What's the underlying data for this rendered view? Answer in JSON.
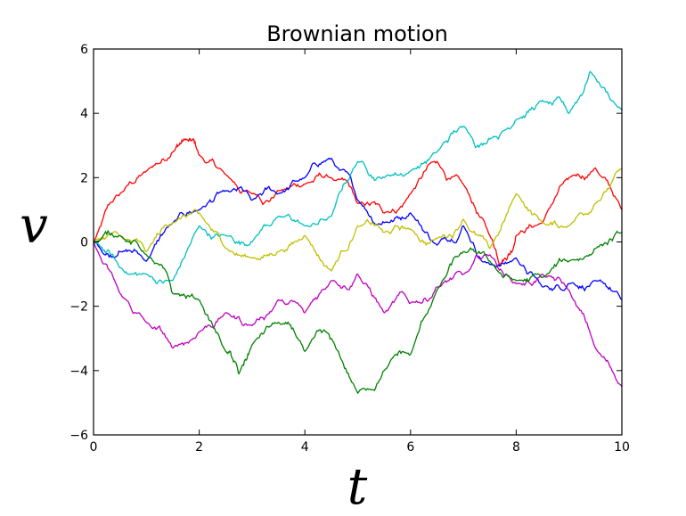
{
  "chart_data": {
    "type": "line",
    "title": "Brownian motion",
    "xlabel": "t",
    "ylabel": "v",
    "xlim": [
      0,
      10
    ],
    "ylim": [
      -6,
      6
    ],
    "xticks": [
      0,
      2,
      4,
      6,
      8,
      10
    ],
    "yticks": [
      -6,
      -4,
      -2,
      0,
      2,
      4,
      6
    ],
    "xtick_labels": [
      "0",
      "2",
      "4",
      "6",
      "8",
      "10"
    ],
    "ytick_labels": [
      "−6",
      "−4",
      "−2",
      "0",
      "2",
      "4",
      "6"
    ],
    "grid": false,
    "series": [
      {
        "color": "#ff0000",
        "x": [
          0,
          0.5,
          1.0,
          1.5,
          1.75,
          2.0,
          2.5,
          3.0,
          3.5,
          4.0,
          4.5,
          5.0,
          5.5,
          6.0,
          6.5,
          7.0,
          7.5,
          7.75,
          8.0,
          8.5,
          9.0,
          9.5,
          10.0
        ],
        "y": [
          0.0,
          1.5,
          2.2,
          2.8,
          3.2,
          2.7,
          2.1,
          1.5,
          1.6,
          1.8,
          2.0,
          1.2,
          0.9,
          1.5,
          2.5,
          1.8,
          0.2,
          -0.6,
          0.2,
          0.6,
          2.0,
          2.3,
          1.0
        ]
      },
      {
        "color": "#0000ff",
        "x": [
          0,
          0.5,
          1.0,
          1.5,
          2.0,
          2.5,
          3.0,
          3.5,
          4.0,
          4.5,
          5.0,
          5.5,
          6.0,
          6.5,
          7.0,
          7.5,
          8.0,
          8.5,
          9.0,
          9.5,
          10.0
        ],
        "y": [
          0.0,
          -0.3,
          -0.6,
          0.6,
          1.0,
          1.6,
          1.3,
          1.5,
          2.0,
          2.6,
          1.3,
          0.6,
          0.9,
          -0.1,
          0.5,
          -0.7,
          -0.5,
          -1.4,
          -1.3,
          -1.2,
          -1.8
        ]
      },
      {
        "color": "#00bfbf",
        "x": [
          0,
          0.5,
          1.0,
          1.5,
          2.0,
          2.5,
          3.0,
          3.5,
          4.0,
          4.5,
          5.0,
          5.5,
          6.0,
          6.5,
          7.0,
          7.5,
          8.0,
          8.5,
          9.0,
          9.4,
          10.0
        ],
        "y": [
          0.0,
          -0.8,
          -1.0,
          -1.2,
          0.5,
          0.2,
          0.0,
          0.8,
          0.5,
          0.8,
          2.5,
          2.0,
          2.2,
          2.8,
          3.6,
          3.2,
          3.8,
          4.4,
          4.0,
          5.3,
          4.1
        ]
      },
      {
        "color": "#bfbf00",
        "x": [
          0,
          0.5,
          1.0,
          1.5,
          2.0,
          2.5,
          3.0,
          3.5,
          4.0,
          4.5,
          5.0,
          5.5,
          6.0,
          6.5,
          7.0,
          7.5,
          8.0,
          8.5,
          9.0,
          9.5,
          10.0
        ],
        "y": [
          0.0,
          0.2,
          -0.3,
          0.6,
          0.9,
          -0.2,
          -0.5,
          -0.3,
          0.2,
          -0.9,
          0.5,
          0.3,
          0.4,
          0.1,
          0.7,
          -0.2,
          1.5,
          0.6,
          0.5,
          1.2,
          2.3
        ]
      },
      {
        "color": "#bf00bf",
        "x": [
          0,
          0.5,
          1.0,
          1.5,
          2.0,
          2.5,
          3.0,
          3.5,
          4.0,
          4.5,
          5.0,
          5.5,
          6.0,
          6.5,
          7.0,
          7.5,
          8.0,
          8.5,
          9.0,
          9.5,
          10.0
        ],
        "y": [
          0.0,
          -1.6,
          -2.5,
          -3.3,
          -2.8,
          -2.2,
          -2.6,
          -1.8,
          -2.2,
          -1.2,
          -1.0,
          -2.2,
          -1.9,
          -1.4,
          -1.0,
          -0.4,
          -1.3,
          -1.0,
          -1.5,
          -3.3,
          -4.5
        ]
      },
      {
        "color": "#008000",
        "x": [
          0,
          0.5,
          1.0,
          1.5,
          2.0,
          2.5,
          2.75,
          3.0,
          3.5,
          4.0,
          4.5,
          5.0,
          5.5,
          6.0,
          6.5,
          7.0,
          7.5,
          8.0,
          8.5,
          9.0,
          9.5,
          10.0
        ],
        "y": [
          0.0,
          0.2,
          -0.4,
          -1.6,
          -1.8,
          -3.4,
          -4.1,
          -3.2,
          -2.5,
          -3.4,
          -3.0,
          -4.7,
          -4.0,
          -3.5,
          -1.5,
          -0.3,
          -0.6,
          -1.2,
          -1.1,
          -0.6,
          -0.2,
          0.3
        ]
      }
    ]
  }
}
